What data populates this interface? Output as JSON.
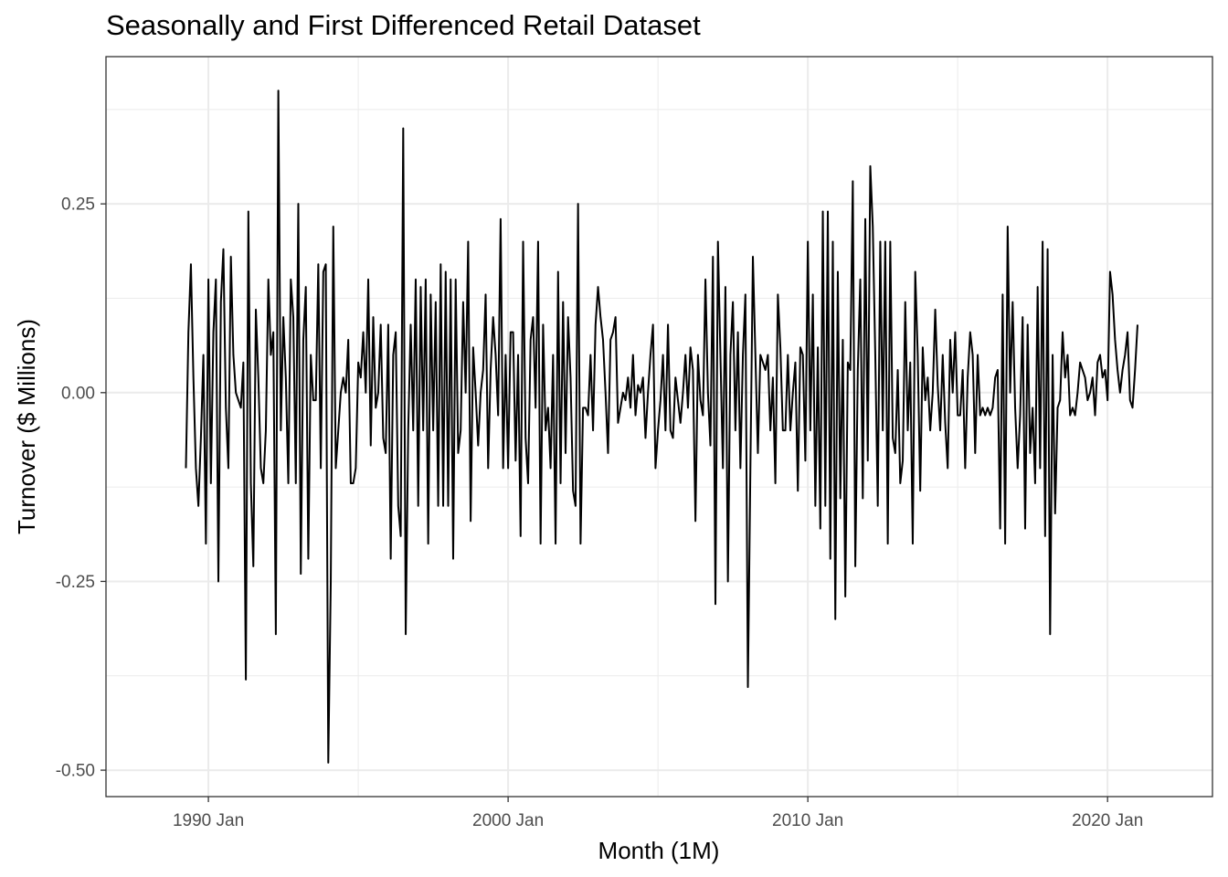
{
  "chart_data": {
    "type": "line",
    "title": "Seasonally and First Differenced Retail Dataset",
    "xlabel": "Month (1M)",
    "ylabel": "Turnover ($ Millions)",
    "x_ticks": [
      "1990 Jan",
      "2000 Jan",
      "2010 Jan",
      "2020 Jan"
    ],
    "y_ticks": [
      "0.25",
      "0.00",
      "-0.25",
      "-0.50"
    ],
    "xlim": [
      "1986-08",
      "2023-07"
    ],
    "ylim": [
      -0.535,
      0.445
    ],
    "grid": true,
    "line_color": "#000000",
    "x_start": "1989-04",
    "frequency": "monthly",
    "series": [
      {
        "values": [
          -0.1,
          0.08,
          0.17,
          0.02,
          -0.1,
          -0.15,
          -0.06,
          0.05,
          -0.2,
          0.15,
          -0.12,
          0.08,
          0.15,
          -0.25,
          0.12,
          0.19,
          -0.02,
          -0.1,
          0.18,
          0.05,
          0.0,
          -0.01,
          -0.02,
          0.04,
          -0.38,
          0.24,
          -0.12,
          -0.23,
          0.11,
          0.02,
          -0.1,
          -0.12,
          -0.05,
          0.15,
          0.05,
          0.08,
          -0.32,
          0.4,
          -0.05,
          0.1,
          0.02,
          -0.12,
          0.15,
          0.1,
          -0.12,
          0.25,
          -0.24,
          0.07,
          0.14,
          -0.22,
          0.05,
          -0.01,
          -0.01,
          0.17,
          -0.1,
          0.16,
          0.17,
          -0.49,
          -0.25,
          0.22,
          -0.1,
          -0.05,
          0.0,
          0.02,
          0.0,
          0.07,
          -0.12,
          -0.12,
          -0.1,
          0.04,
          0.02,
          0.08,
          0.0,
          0.15,
          -0.07,
          0.1,
          -0.02,
          0.0,
          0.09,
          -0.06,
          -0.08,
          0.09,
          -0.22,
          0.05,
          0.08,
          -0.15,
          -0.19,
          0.35,
          -0.32,
          -0.05,
          0.09,
          -0.05,
          0.15,
          -0.15,
          0.14,
          -0.05,
          0.15,
          -0.2,
          0.13,
          -0.05,
          0.12,
          -0.15,
          0.17,
          -0.15,
          0.16,
          -0.15,
          0.15,
          -0.22,
          0.15,
          -0.08,
          -0.05,
          0.12,
          0.0,
          0.2,
          -0.17,
          0.06,
          0.0,
          -0.07,
          0.0,
          0.03,
          0.13,
          -0.1,
          0.03,
          0.1,
          0.05,
          -0.03,
          0.23,
          -0.1,
          0.05,
          -0.1,
          0.08,
          0.08,
          -0.09,
          0.05,
          -0.19,
          0.2,
          -0.06,
          -0.12,
          0.07,
          0.1,
          -0.02,
          0.2,
          -0.2,
          0.09,
          -0.05,
          -0.02,
          -0.1,
          0.05,
          -0.2,
          0.16,
          -0.12,
          0.12,
          -0.08,
          0.1,
          0.02,
          -0.13,
          -0.15,
          0.25,
          -0.2,
          -0.02,
          -0.02,
          -0.03,
          0.05,
          -0.05,
          0.09,
          0.14,
          0.1,
          0.07,
          0.0,
          -0.08,
          0.07,
          0.08,
          0.1,
          -0.04,
          -0.02,
          0.0,
          -0.01,
          0.02,
          -0.02,
          0.05,
          -0.03,
          0.01,
          0.0,
          0.02,
          -0.06,
          0.0,
          0.05,
          0.09,
          -0.1,
          -0.05,
          -0.01,
          0.05,
          -0.05,
          0.09,
          -0.05,
          -0.06,
          0.02,
          -0.01,
          -0.04,
          0.0,
          0.05,
          -0.02,
          0.06,
          0.03,
          -0.17,
          0.05,
          -0.01,
          -0.03,
          0.15,
          0.0,
          -0.07,
          0.18,
          -0.28,
          0.2,
          0.05,
          -0.1,
          0.14,
          -0.25,
          0.05,
          0.12,
          -0.05,
          0.08,
          -0.1,
          0.05,
          0.13,
          -0.39,
          -0.1,
          0.18,
          0.05,
          -0.08,
          0.05,
          0.04,
          0.03,
          0.05,
          -0.05,
          0.02,
          -0.12,
          0.13,
          0.06,
          -0.05,
          -0.05,
          0.05,
          -0.05,
          0.0,
          0.04,
          -0.13,
          0.06,
          0.05,
          -0.09,
          0.2,
          -0.05,
          0.13,
          -0.15,
          0.06,
          -0.18,
          0.24,
          -0.15,
          0.24,
          -0.22,
          0.2,
          -0.3,
          0.16,
          -0.14,
          0.07,
          -0.27,
          0.04,
          0.03,
          0.28,
          -0.23,
          0.03,
          0.15,
          -0.14,
          0.23,
          -0.09,
          0.3,
          0.22,
          0.05,
          -0.15,
          0.2,
          -0.05,
          0.2,
          -0.2,
          0.2,
          -0.06,
          -0.08,
          0.03,
          -0.12,
          -0.09,
          0.12,
          -0.05,
          0.04,
          -0.2,
          0.16,
          0.05,
          -0.13,
          0.06,
          -0.01,
          0.02,
          -0.05,
          0.0,
          0.11,
          0.01,
          -0.05,
          0.05,
          -0.04,
          -0.1,
          0.07,
          0.0,
          0.08,
          -0.03,
          -0.03,
          0.03,
          -0.1,
          0.02,
          0.08,
          0.05,
          -0.08,
          0.05,
          -0.03,
          -0.02,
          -0.03,
          -0.02,
          -0.03,
          -0.02,
          0.02,
          0.03,
          -0.18,
          0.13,
          -0.2,
          0.22,
          0.0,
          0.12,
          -0.02,
          -0.1,
          -0.03,
          0.1,
          -0.18,
          0.09,
          -0.08,
          -0.02,
          -0.12,
          0.14,
          -0.1,
          0.2,
          -0.19,
          0.19,
          -0.32,
          0.05,
          -0.16,
          -0.02,
          -0.01,
          0.08,
          0.02,
          0.05,
          -0.03,
          -0.02,
          -0.03,
          0.0,
          0.04,
          0.03,
          0.02,
          -0.01,
          0.0,
          0.02,
          -0.03,
          0.04,
          0.05,
          0.02,
          0.03,
          -0.01,
          0.16,
          0.13,
          0.07,
          0.03,
          0.0,
          0.03,
          0.05,
          0.08,
          -0.01,
          -0.02,
          0.03,
          0.09
        ]
      }
    ]
  }
}
